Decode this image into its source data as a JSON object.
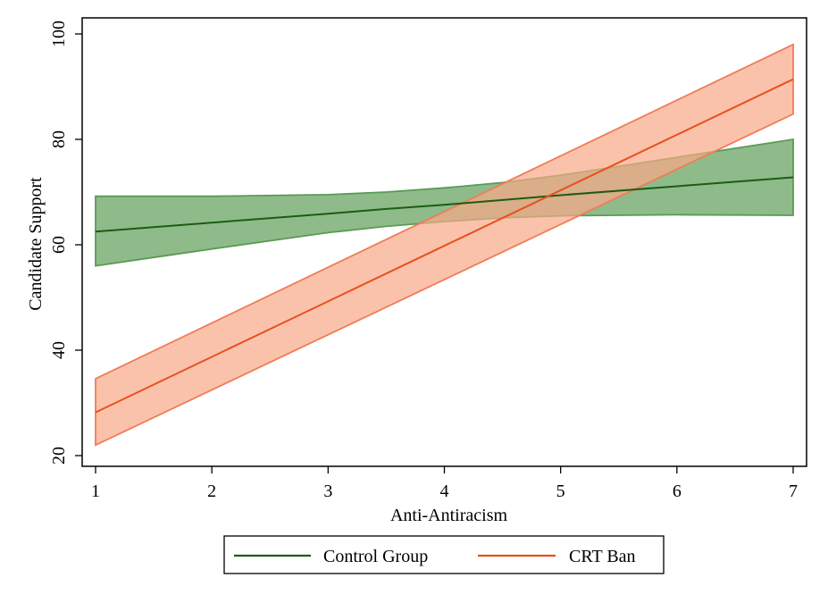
{
  "chart_data": {
    "type": "line",
    "title": "",
    "xlabel": "Anti-Antiracism",
    "ylabel": "Candidate Support",
    "xlim": [
      1,
      7
    ],
    "ylim": [
      20,
      100
    ],
    "xticks": [
      1,
      2,
      3,
      4,
      5,
      6,
      7
    ],
    "yticks": [
      20,
      40,
      60,
      80,
      100
    ],
    "grid": false,
    "legend_position": "bottom",
    "series": [
      {
        "name": "Control Group",
        "color": "#1e5c12",
        "band_fill": "#6fa86a",
        "band_edge": "#5b9a55",
        "x": [
          1,
          2,
          3,
          3.5,
          4,
          4.5,
          5,
          6,
          7
        ],
        "y": [
          62.5,
          64.2,
          65.9,
          66.8,
          67.6,
          68.5,
          69.4,
          71.1,
          72.8
        ],
        "lower": [
          56.0,
          59.2,
          62.3,
          63.5,
          64.4,
          65.1,
          65.5,
          65.7,
          65.6
        ],
        "upper": [
          69.2,
          69.2,
          69.5,
          70.0,
          70.8,
          71.8,
          73.2,
          76.6,
          80.0
        ]
      },
      {
        "name": "CRT Ban",
        "color": "#e8501e",
        "band_fill": "#f8a888",
        "band_edge": "#f07c58",
        "x": [
          1,
          7
        ],
        "y": [
          28.2,
          91.4
        ],
        "lower": [
          22.0,
          84.8
        ],
        "upper": [
          34.6,
          98.0
        ]
      }
    ]
  }
}
